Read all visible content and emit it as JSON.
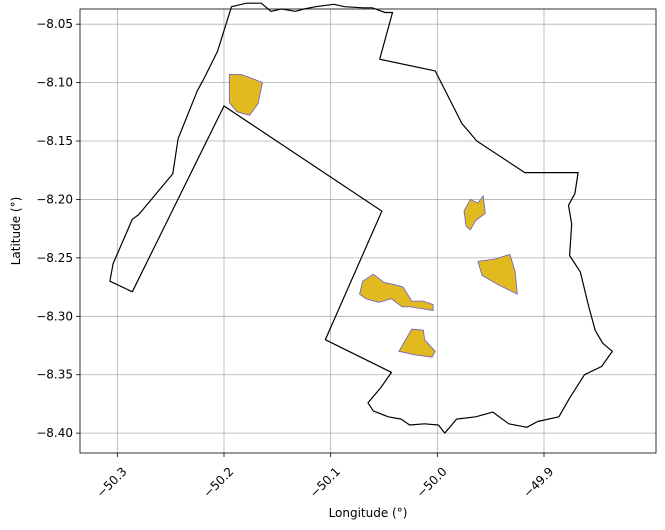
{
  "chart_data": {
    "type": "map",
    "title": "",
    "xlabel": "Longitude (°)",
    "ylabel": "Latitude (°)",
    "xlim": [
      -50.335,
      -49.795
    ],
    "ylim": [
      -8.417,
      -8.037
    ],
    "grid": true,
    "xticks": [
      -50.3,
      -50.2,
      -50.1,
      -50.0,
      -49.9
    ],
    "xtick_labels": [
      "−50.3",
      "−50.2",
      "−50.1",
      "−50.0",
      "−49.9"
    ],
    "yticks": [
      -8.05,
      -8.1,
      -8.15,
      -8.2,
      -8.25,
      -8.3,
      -8.35,
      -8.4
    ],
    "ytick_labels": [
      "−8.05",
      "−8.10",
      "−8.15",
      "−8.20",
      "−8.25",
      "−8.30",
      "−8.35",
      "−8.40"
    ],
    "colors": {
      "boundary": "#000000",
      "polygon_fill": "#e0ba1f",
      "polygon_edge": "#6a5acd",
      "grid": "#b0b0b0"
    },
    "boundary": [
      [
        -50.307,
        -8.27
      ],
      [
        -50.304,
        -8.255
      ],
      [
        -50.286,
        -8.217
      ],
      [
        -50.28,
        -8.213
      ],
      [
        -50.248,
        -8.178
      ],
      [
        -50.243,
        -8.148
      ],
      [
        -50.225,
        -8.107
      ],
      [
        -50.219,
        -8.097
      ],
      [
        -50.206,
        -8.073
      ],
      [
        -50.193,
        -8.035
      ],
      [
        -50.179,
        -8.032
      ],
      [
        -50.165,
        -8.032
      ],
      [
        -50.156,
        -8.039
      ],
      [
        -50.146,
        -8.037
      ],
      [
        -50.133,
        -8.039
      ],
      [
        -50.125,
        -8.037
      ],
      [
        -50.114,
        -8.035
      ],
      [
        -50.097,
        -8.033
      ],
      [
        -50.087,
        -8.035
      ],
      [
        -50.07,
        -8.036
      ],
      [
        -50.061,
        -8.036
      ],
      [
        -50.049,
        -8.04
      ],
      [
        -50.042,
        -8.04
      ],
      [
        -50.054,
        -8.08
      ],
      [
        -50.002,
        -8.09
      ],
      [
        -49.977,
        -8.135
      ],
      [
        -49.963,
        -8.15
      ],
      [
        -49.918,
        -8.177
      ],
      [
        -49.868,
        -8.177
      ],
      [
        -49.871,
        -8.195
      ],
      [
        -49.877,
        -8.205
      ],
      [
        -49.874,
        -8.221
      ],
      [
        -49.876,
        -8.248
      ],
      [
        -49.866,
        -8.262
      ],
      [
        -49.858,
        -8.292
      ],
      [
        -49.852,
        -8.312
      ],
      [
        -49.845,
        -8.323
      ],
      [
        -49.836,
        -8.33
      ],
      [
        -49.846,
        -8.343
      ],
      [
        -49.862,
        -8.35
      ],
      [
        -49.876,
        -8.37
      ],
      [
        -49.886,
        -8.386
      ],
      [
        -49.906,
        -8.39
      ],
      [
        -49.916,
        -8.395
      ],
      [
        -49.933,
        -8.392
      ],
      [
        -49.948,
        -8.382
      ],
      [
        -49.964,
        -8.386
      ],
      [
        -49.982,
        -8.388
      ],
      [
        -49.993,
        -8.4
      ],
      [
        -49.999,
        -8.393
      ],
      [
        -50.012,
        -8.392
      ],
      [
        -50.026,
        -8.393
      ],
      [
        -50.034,
        -8.388
      ],
      [
        -50.046,
        -8.386
      ],
      [
        -50.06,
        -8.381
      ],
      [
        -50.065,
        -8.374
      ],
      [
        -50.053,
        -8.361
      ],
      [
        -50.043,
        -8.348
      ],
      [
        -50.105,
        -8.32
      ],
      [
        -50.052,
        -8.21
      ],
      [
        -50.2,
        -8.12
      ],
      [
        -50.286,
        -8.279
      ],
      [
        -50.307,
        -8.27
      ]
    ],
    "polygons": [
      [
        [
          -50.195,
          -8.093
        ],
        [
          -50.184,
          -8.093
        ],
        [
          -50.172,
          -8.097
        ],
        [
          -50.164,
          -8.1
        ],
        [
          -50.168,
          -8.118
        ],
        [
          -50.176,
          -8.128
        ],
        [
          -50.188,
          -8.125
        ],
        [
          -50.195,
          -8.117
        ],
        [
          -50.195,
          -8.093
        ]
      ],
      [
        [
          -49.975,
          -8.21
        ],
        [
          -49.969,
          -8.2
        ],
        [
          -49.962,
          -8.203
        ],
        [
          -49.957,
          -8.197
        ],
        [
          -49.955,
          -8.212
        ],
        [
          -49.964,
          -8.218
        ],
        [
          -49.969,
          -8.226
        ],
        [
          -49.973,
          -8.223
        ],
        [
          -49.975,
          -8.21
        ]
      ],
      [
        [
          -49.962,
          -8.253
        ],
        [
          -49.946,
          -8.251
        ],
        [
          -49.932,
          -8.247
        ],
        [
          -49.927,
          -8.262
        ],
        [
          -49.925,
          -8.281
        ],
        [
          -49.943,
          -8.273
        ],
        [
          -49.958,
          -8.265
        ],
        [
          -49.962,
          -8.253
        ]
      ],
      [
        [
          -50.073,
          -8.281
        ],
        [
          -50.07,
          -8.27
        ],
        [
          -50.06,
          -8.264
        ],
        [
          -50.05,
          -8.271
        ],
        [
          -50.04,
          -8.273
        ],
        [
          -50.032,
          -8.275
        ],
        [
          -50.024,
          -8.287
        ],
        [
          -50.013,
          -8.287
        ],
        [
          -50.004,
          -8.29
        ],
        [
          -50.004,
          -8.295
        ],
        [
          -50.025,
          -8.292
        ],
        [
          -50.033,
          -8.292
        ],
        [
          -50.043,
          -8.285
        ],
        [
          -50.055,
          -8.288
        ],
        [
          -50.067,
          -8.285
        ],
        [
          -50.073,
          -8.281
        ]
      ],
      [
        [
          -50.036,
          -8.33
        ],
        [
          -50.024,
          -8.311
        ],
        [
          -50.013,
          -8.312
        ],
        [
          -50.012,
          -8.32
        ],
        [
          -50.002,
          -8.33
        ],
        [
          -50.005,
          -8.335
        ],
        [
          -50.021,
          -8.333
        ],
        [
          -50.036,
          -8.33
        ]
      ]
    ]
  }
}
